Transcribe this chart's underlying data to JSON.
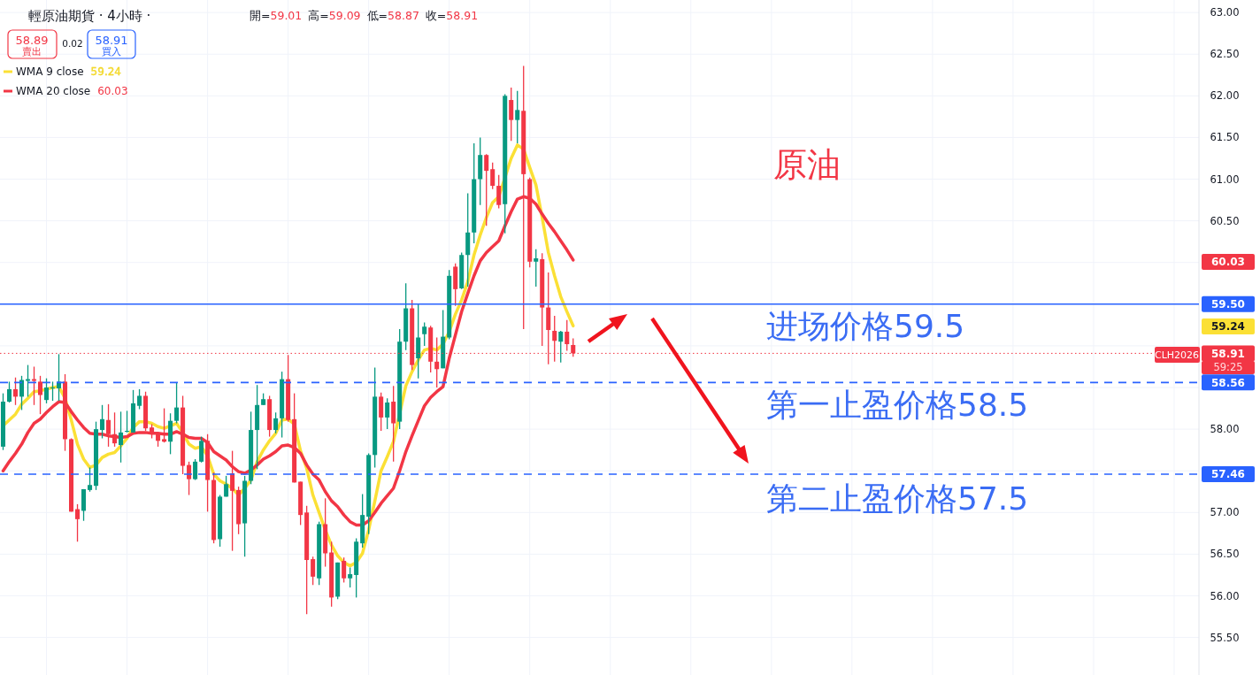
{
  "chart_data": {
    "type": "candlestick",
    "title": "輕原油期貨 · 4小時 ·",
    "subtitle": "開=59.01 高=59.09 低=58.87 收=58.91",
    "categories": [
      null,
      null,
      null,
      null,
      null,
      null,
      null,
      null,
      null,
      null,
      null,
      null,
      null,
      null,
      null,
      null,
      null,
      null,
      null,
      null,
      null,
      null,
      null,
      null,
      null,
      null,
      null,
      null,
      null,
      null,
      null,
      null,
      null,
      null,
      null,
      null,
      null,
      null,
      null,
      null,
      null,
      null,
      null,
      null,
      null,
      null,
      null,
      null,
      null,
      null,
      null,
      null,
      null,
      null,
      null,
      null,
      null,
      null,
      null,
      null,
      null,
      null,
      null,
      null,
      null,
      null,
      null,
      null,
      null,
      null,
      null,
      null,
      null,
      null,
      null,
      null,
      null,
      null,
      null,
      null,
      null,
      null,
      null,
      null,
      null,
      null,
      null,
      null,
      null,
      null,
      null,
      null,
      null,
      null,
      null,
      null,
      null,
      null,
      null,
      null,
      null,
      null,
      null,
      null,
      null,
      null,
      null,
      null,
      null,
      null,
      null,
      null,
      null,
      null,
      null,
      null,
      null,
      null,
      null,
      null,
      null,
      null,
      null,
      null,
      null,
      null,
      null,
      null,
      null,
      null,
      null,
      null,
      null,
      null,
      null,
      null,
      null,
      null,
      null,
      null,
      null,
      null,
      null,
      null,
      null,
      null,
      null,
      null,
      null,
      null,
      null,
      null,
      null,
      null,
      null,
      null,
      null,
      null,
      null,
      null,
      null,
      null,
      null,
      null,
      null,
      null,
      null,
      null,
      null,
      null,
      null,
      null,
      null,
      null,
      null,
      null,
      null,
      null,
      null,
      null,
      null,
      null,
      null,
      null,
      null,
      null,
      null,
      null,
      null,
      null,
      null,
      null,
      null
    ],
    "ohlc": [
      [
        57.79,
        58.43,
        57.75,
        58.33
      ],
      [
        58.33,
        58.57,
        58.32,
        58.48
      ],
      [
        58.48,
        58.62,
        58.29,
        58.39
      ],
      [
        58.39,
        58.64,
        58.23,
        58.59
      ],
      [
        58.58,
        58.77,
        58.39,
        58.6
      ],
      [
        58.6,
        58.75,
        58.29,
        58.58
      ],
      [
        58.57,
        58.64,
        58.18,
        58.41
      ],
      [
        58.35,
        58.61,
        58.31,
        58.5
      ],
      [
        58.49,
        58.57,
        58.34,
        58.5
      ],
      [
        58.49,
        58.9,
        58.34,
        58.57
      ],
      [
        58.57,
        58.66,
        57.74,
        57.88
      ],
      [
        57.88,
        57.89,
        57.01,
        57.01
      ],
      [
        57.04,
        57.1,
        56.65,
        56.92
      ],
      [
        57.02,
        57.28,
        56.9,
        57.28
      ],
      [
        57.27,
        57.54,
        57.25,
        57.33
      ],
      [
        57.32,
        58.09,
        57.27,
        58.0
      ],
      [
        57.99,
        58.29,
        57.89,
        58.12
      ],
      [
        58.11,
        58.3,
        57.79,
        57.94
      ],
      [
        57.94,
        58.2,
        57.79,
        57.83
      ],
      [
        57.81,
        58.21,
        57.6,
        57.96
      ],
      [
        57.97,
        58.22,
        57.96,
        57.98
      ],
      [
        57.96,
        58.47,
        57.96,
        58.31
      ],
      [
        58.28,
        58.48,
        58.24,
        58.4
      ],
      [
        58.4,
        58.45,
        57.98,
        58.01
      ],
      [
        58.02,
        58.06,
        57.89,
        57.94
      ],
      [
        57.94,
        57.95,
        57.79,
        57.86
      ],
      [
        57.88,
        58.25,
        57.84,
        57.85
      ],
      [
        57.85,
        58.19,
        57.7,
        58.1
      ],
      [
        58.1,
        58.56,
        58.07,
        58.26
      ],
      [
        58.26,
        58.4,
        57.46,
        57.56
      ],
      [
        57.57,
        57.61,
        57.21,
        57.4
      ],
      [
        57.4,
        57.64,
        57.39,
        57.61
      ],
      [
        57.61,
        57.91,
        57.6,
        57.86
      ],
      [
        57.86,
        57.94,
        57.01,
        57.39
      ],
      [
        57.39,
        57.48,
        56.63,
        56.67
      ],
      [
        56.68,
        57.21,
        56.59,
        57.19
      ],
      [
        57.19,
        57.44,
        57.19,
        57.34
      ],
      [
        57.47,
        57.74,
        56.54,
        57.26
      ],
      [
        57.27,
        57.31,
        56.74,
        56.86
      ],
      [
        56.87,
        57.44,
        56.47,
        57.38
      ],
      [
        57.38,
        58.21,
        57.34,
        57.99
      ],
      [
        57.99,
        58.53,
        57.52,
        58.29
      ],
      [
        58.29,
        58.43,
        58.29,
        58.36
      ],
      [
        58.36,
        58.4,
        57.91,
        57.99
      ],
      [
        57.99,
        58.2,
        57.95,
        58.13
      ],
      [
        58.13,
        58.69,
        57.9,
        58.6
      ],
      [
        58.6,
        58.89,
        58.09,
        58.11
      ],
      [
        58.12,
        58.43,
        57.36,
        57.36
      ],
      [
        57.37,
        57.37,
        56.85,
        56.97
      ],
      [
        57.0,
        57.08,
        55.78,
        56.43
      ],
      [
        56.44,
        56.47,
        56.13,
        56.23
      ],
      [
        56.21,
        56.89,
        56.13,
        56.86
      ],
      [
        56.86,
        57.17,
        56.35,
        56.51
      ],
      [
        56.52,
        56.65,
        55.87,
        55.98
      ],
      [
        55.99,
        56.4,
        55.96,
        56.4
      ],
      [
        56.42,
        56.46,
        56.16,
        56.21
      ],
      [
        56.21,
        56.34,
        56.1,
        56.26
      ],
      [
        56.25,
        56.69,
        55.98,
        56.65
      ],
      [
        56.63,
        57.22,
        56.58,
        56.97
      ],
      [
        56.95,
        57.71,
        56.74,
        57.69
      ],
      [
        57.69,
        58.74,
        57.54,
        58.39
      ],
      [
        58.39,
        58.44,
        57.98,
        58.14
      ],
      [
        58.14,
        58.37,
        58.0,
        58.32
      ],
      [
        58.33,
        58.52,
        57.61,
        58.07
      ],
      [
        58.09,
        59.2,
        58.0,
        59.05
      ],
      [
        59.05,
        59.75,
        58.95,
        59.45
      ],
      [
        59.45,
        59.55,
        58.71,
        58.77
      ],
      [
        58.85,
        59.5,
        58.61,
        59.1
      ],
      [
        59.14,
        59.28,
        59.0,
        59.23
      ],
      [
        59.22,
        59.24,
        58.68,
        58.81
      ],
      [
        58.81,
        59.1,
        58.5,
        58.72
      ],
      [
        58.73,
        59.43,
        58.73,
        59.11
      ],
      [
        59.1,
        59.91,
        59.08,
        59.84
      ],
      [
        59.95,
        59.99,
        59.48,
        59.68
      ],
      [
        59.69,
        60.12,
        59.68,
        60.09
      ],
      [
        60.09,
        60.83,
        59.71,
        60.36
      ],
      [
        60.36,
        61.43,
        60.23,
        61.0
      ],
      [
        61.0,
        61.5,
        60.69,
        61.29
      ],
      [
        61.29,
        61.3,
        60.44,
        61.1
      ],
      [
        61.12,
        61.2,
        60.88,
        60.92
      ],
      [
        60.92,
        61.05,
        60.65,
        60.69
      ],
      [
        60.7,
        62.02,
        60.35,
        62.0
      ],
      [
        61.95,
        62.1,
        61.46,
        61.71
      ],
      [
        61.71,
        62.06,
        61.43,
        61.83
      ],
      [
        61.82,
        62.36,
        59.2,
        61.06
      ],
      [
        61.0,
        61.02,
        59.94,
        60.01
      ],
      [
        60.01,
        60.16,
        59.71,
        60.05
      ],
      [
        60.04,
        60.11,
        59.0,
        59.46
      ],
      [
        59.46,
        59.88,
        58.78,
        59.19
      ],
      [
        59.18,
        59.36,
        58.81,
        59.06
      ],
      [
        59.05,
        59.18,
        58.8,
        59.17
      ],
      [
        59.17,
        59.31,
        58.94,
        59.02
      ],
      [
        59.01,
        59.09,
        58.87,
        58.91
      ],
      null,
      null,
      null,
      null,
      null,
      null,
      null,
      null,
      null,
      null,
      null,
      null,
      null,
      null,
      null,
      null,
      null,
      null,
      null,
      null,
      null,
      null,
      null,
      null,
      null,
      null,
      null,
      null,
      null,
      null,
      null,
      null,
      null,
      null,
      null,
      null,
      null,
      null,
      null,
      null,
      null,
      null,
      null,
      null,
      null,
      null,
      null,
      null,
      null,
      null,
      null,
      null,
      null,
      null,
      null,
      null,
      null,
      null,
      null,
      null,
      null,
      null,
      null,
      null,
      null,
      null,
      null,
      null,
      null,
      null,
      null,
      null,
      null,
      null,
      null,
      null,
      null,
      null,
      null,
      null,
      null,
      null,
      null,
      null,
      null,
      null,
      null,
      null,
      null,
      null,
      null,
      null,
      null,
      null,
      null,
      null,
      null,
      null,
      null,
      null
    ],
    "series": [
      {
        "name": "WMA 9 close",
        "type": "line",
        "color": "#fbe035",
        "values": [
          58.04,
          58.11,
          58.18,
          58.3,
          58.37,
          58.45,
          58.46,
          58.48,
          58.5,
          58.51,
          58.37,
          58.11,
          57.82,
          57.64,
          57.54,
          57.57,
          57.66,
          57.7,
          57.72,
          57.8,
          57.89,
          58.02,
          58.09,
          58.09,
          58.07,
          58.03,
          58.01,
          58.04,
          58.07,
          57.96,
          57.82,
          57.77,
          57.79,
          57.68,
          57.46,
          57.38,
          57.34,
          57.29,
          57.21,
          57.29,
          57.39,
          57.61,
          57.75,
          57.86,
          57.95,
          58.11,
          58.12,
          58.06,
          57.74,
          57.53,
          57.21,
          57.0,
          56.79,
          56.61,
          56.48,
          56.4,
          56.36,
          56.4,
          56.51,
          56.79,
          57.14,
          57.5,
          57.67,
          57.85,
          null,
          58.52,
          58.69,
          58.83,
          58.95,
          58.97,
          58.95,
          59.02,
          59.17,
          59.38,
          59.55,
          59.77,
          60.09,
          60.33,
          60.54,
          60.72,
          60.79,
          null,
          61.25,
          61.41,
          61.36,
          61.14,
          60.93,
          60.54,
          60.12,
          59.84,
          59.59,
          59.41,
          59.24,
          null,
          null,
          null,
          null,
          null,
          null,
          null,
          null,
          null,
          null,
          null,
          null,
          null,
          null,
          null,
          null,
          null,
          null,
          null,
          null,
          null,
          null,
          null,
          null,
          null,
          null,
          null,
          null,
          null,
          null,
          null,
          null,
          null,
          null,
          null,
          null,
          null,
          null,
          null,
          null,
          null,
          null,
          null,
          null,
          null,
          null,
          null,
          null,
          null,
          null,
          null,
          null,
          null,
          null,
          null,
          null,
          null,
          null,
          null,
          null,
          null,
          null,
          null,
          null,
          null,
          null,
          null,
          null,
          null,
          null,
          null,
          null,
          null,
          null,
          null,
          null,
          null,
          null,
          null,
          null,
          null,
          null,
          null,
          null,
          null,
          null,
          null,
          null,
          null,
          null,
          null,
          null,
          null,
          null,
          null,
          null,
          null,
          null,
          null,
          null
        ]
      },
      {
        "name": "WMA 20 close",
        "type": "line",
        "color": "#f23645",
        "values": [
          57.5,
          57.61,
          57.71,
          57.82,
          57.96,
          58.07,
          58.12,
          58.2,
          58.27,
          58.33,
          58.32,
          58.21,
          58.11,
          58.02,
          57.95,
          57.94,
          57.94,
          57.92,
          57.91,
          57.9,
          57.91,
          57.95,
          57.96,
          57.96,
          57.95,
          57.95,
          57.94,
          57.94,
          57.97,
          57.94,
          57.9,
          57.89,
          57.89,
          57.84,
          57.73,
          57.68,
          57.63,
          57.55,
          57.49,
          57.47,
          57.51,
          57.57,
          57.64,
          57.68,
          57.73,
          57.8,
          57.81,
          57.78,
          57.71,
          57.57,
          57.46,
          57.39,
          57.25,
          57.14,
          57.07,
          56.97,
          56.89,
          56.85,
          56.85,
          56.9,
          57.0,
          57.11,
          57.2,
          57.29,
          57.5,
          57.73,
          57.92,
          58.1,
          58.28,
          58.38,
          58.45,
          58.51,
          58.85,
          59.13,
          59.41,
          59.63,
          59.84,
          60.02,
          60.12,
          60.19,
          60.26,
          60.44,
          60.61,
          60.76,
          60.79,
          60.77,
          60.7,
          60.58,
          60.47,
          60.37,
          60.26,
          60.15,
          60.03,
          null,
          null,
          null,
          null,
          null,
          null,
          null,
          null,
          null,
          null,
          null,
          null,
          null,
          null,
          null,
          null,
          null,
          null,
          null,
          null,
          null,
          null,
          null,
          null,
          null,
          null,
          null,
          null,
          null,
          null,
          null,
          null,
          null,
          null,
          null,
          null,
          null,
          null,
          null,
          null,
          null,
          null,
          null,
          null,
          null,
          null,
          null,
          null,
          null,
          null,
          null,
          null,
          null,
          null,
          null,
          null,
          null,
          null,
          null,
          null,
          null,
          null,
          null,
          null,
          null,
          null,
          null,
          null,
          null,
          null,
          null,
          null,
          null,
          null,
          null,
          null,
          null,
          null,
          null,
          null,
          null,
          null,
          null,
          null,
          null,
          null,
          null,
          null,
          null,
          null,
          null,
          null,
          null,
          null,
          null,
          null,
          null,
          null,
          null,
          null
        ]
      }
    ],
    "ylim": [
      55.05,
      63.15
    ],
    "yticks": [
      {
        "value": 55.5,
        "label": "55.50"
      },
      {
        "value": 56,
        "label": "56.00"
      },
      {
        "value": 56.5,
        "label": "56.50"
      },
      {
        "value": 57,
        "label": "57.00"
      },
      {
        "value": 57.5,
        "label": null
      },
      {
        "value": 58,
        "label": "58.00"
      },
      {
        "value": 58.5,
        "label": null
      },
      {
        "value": 59,
        "label": null
      },
      {
        "value": 59.5,
        "label": null
      },
      {
        "value": 60,
        "label": null
      },
      {
        "value": 60.5,
        "label": "60.50"
      },
      {
        "value": 61,
        "label": "61.00"
      },
      {
        "value": 61.5,
        "label": "61.50"
      },
      {
        "value": 62,
        "label": "62.00"
      },
      {
        "value": 62.5,
        "label": "62.50"
      },
      {
        "value": 63,
        "label": "63.00"
      }
    ],
    "grid": true,
    "legend": "top left",
    "ref_lines": [
      {
        "axis": "y",
        "value": 59.5,
        "label": "59.50",
        "color": "#2962ff",
        "line_style": "solid"
      },
      {
        "axis": "y",
        "value": 58.56,
        "label": "58.56",
        "color": "#2962ff",
        "line_style": "dashed"
      },
      {
        "axis": "y",
        "value": 57.46,
        "label": "57.46",
        "color": "#2962ff",
        "line_style": "dashed"
      },
      {
        "axis": "y",
        "value": 58.91,
        "label": "58.91",
        "color": "#f23645",
        "line_style": "dotted"
      }
    ],
    "annotations": [
      "58.89",
      "賣出",
      "0.02",
      "58.91",
      "買入",
      "原油",
      "进场价格59.5",
      "第一止盈价格58.5",
      "第二止盈价格57.5",
      "CLH2026",
      "59:25",
      "60.03",
      "59.24"
    ]
  }
}
